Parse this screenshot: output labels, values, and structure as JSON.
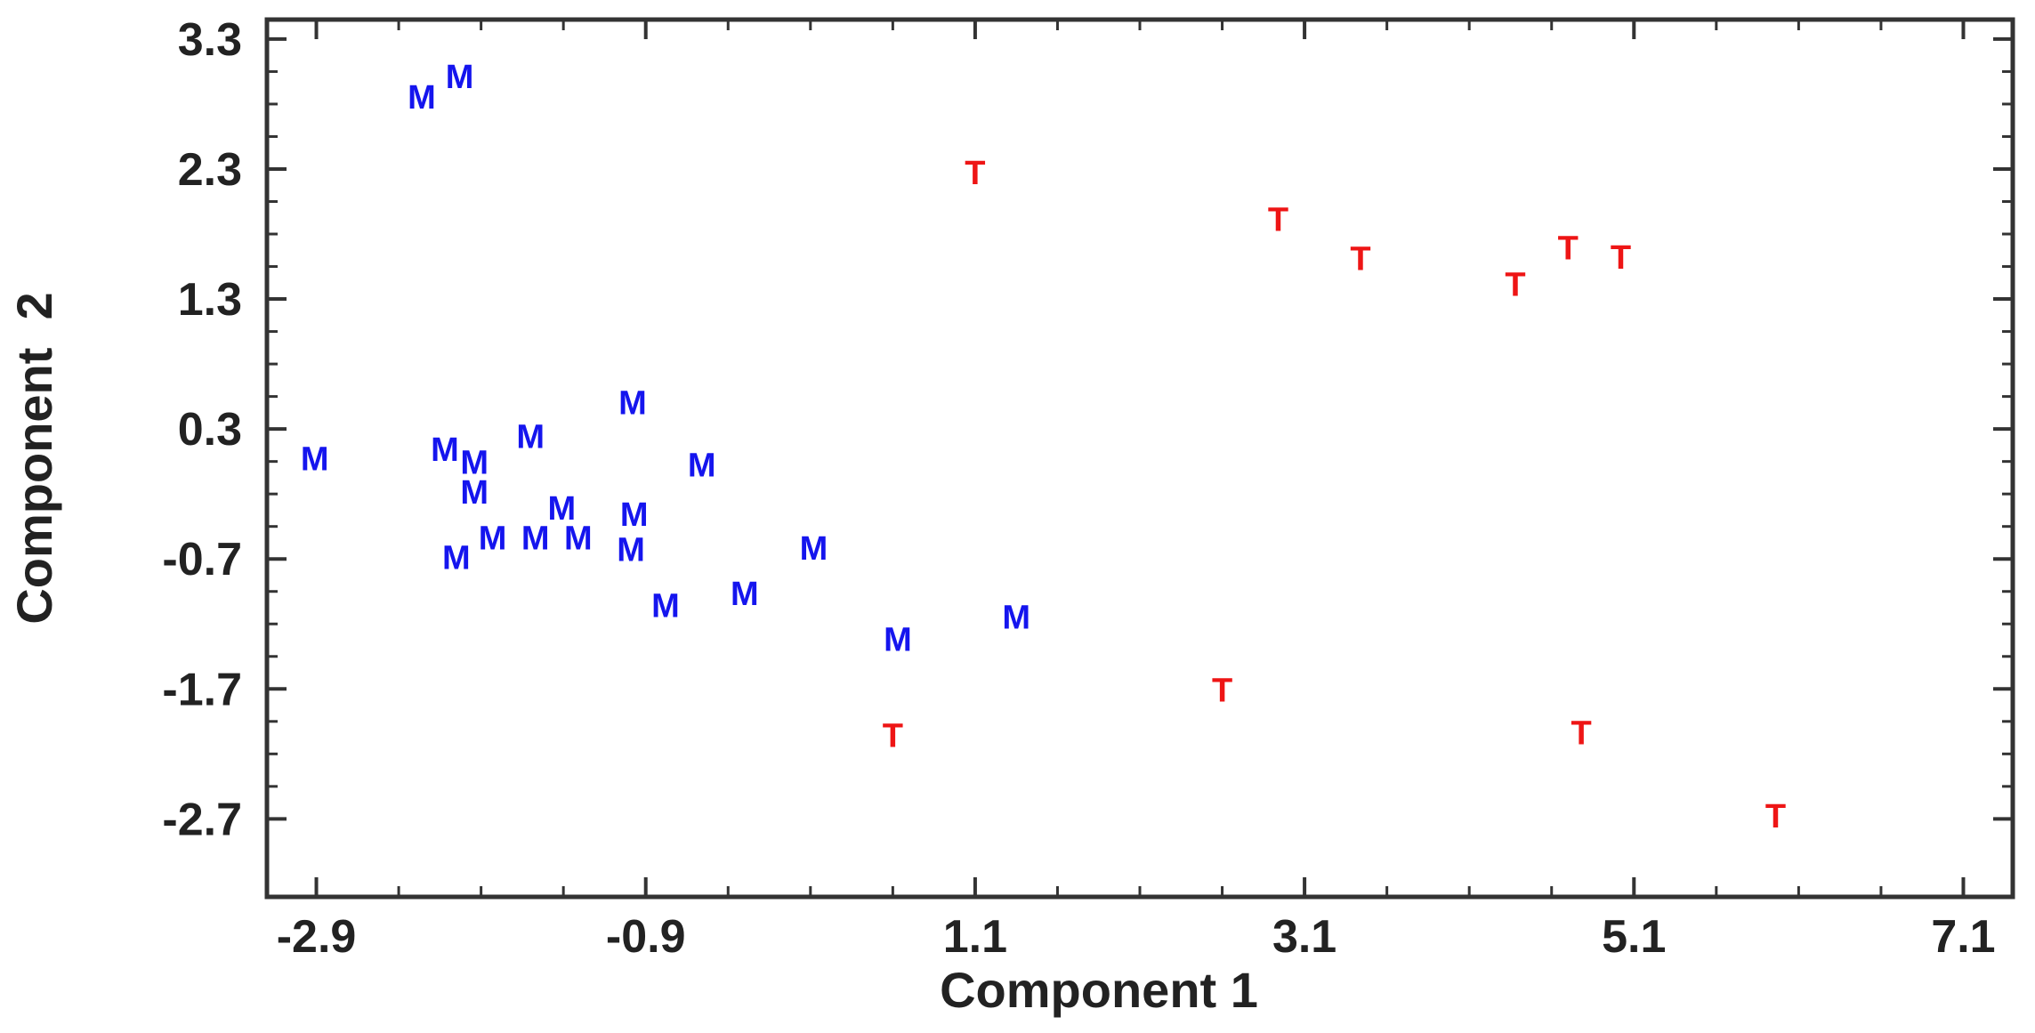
{
  "chart_data": {
    "type": "scatter",
    "title": "",
    "xlabel": "Component 1",
    "ylabel": "Component  2",
    "xlim": [
      -3.2,
      7.4
    ],
    "ylim": [
      -3.3,
      3.45
    ],
    "xticks": [
      -2.9,
      -0.9,
      1.1,
      3.1,
      5.1,
      7.1
    ],
    "xtick_labels": [
      "-2.9",
      "-0.9",
      "1.1",
      "3.1",
      "5.1",
      "7.1"
    ],
    "yticks": [
      3.3,
      2.3,
      1.3,
      0.3,
      -0.7,
      -1.7,
      -2.7
    ],
    "ytick_labels": [
      "3.3",
      "2.3",
      "1.3",
      "0.3",
      "-0.7",
      "-1.7",
      "-2.7"
    ],
    "grid": false,
    "series": [
      {
        "marker_label": "M",
        "color": "#1515ee",
        "points": [
          {
            "x": -2.26,
            "y": 2.86
          },
          {
            "x": -2.03,
            "y": 3.02
          },
          {
            "x": -2.91,
            "y": 0.08
          },
          {
            "x": -2.12,
            "y": 0.15
          },
          {
            "x": -1.94,
            "y": 0.05
          },
          {
            "x": -1.6,
            "y": 0.25
          },
          {
            "x": -1.41,
            "y": -0.3
          },
          {
            "x": -0.98,
            "y": 0.51
          },
          {
            "x": -0.97,
            "y": -0.35
          },
          {
            "x": -0.56,
            "y": 0.03
          },
          {
            "x": -1.94,
            "y": -0.18
          },
          {
            "x": -1.83,
            "y": -0.53
          },
          {
            "x": -1.57,
            "y": -0.53
          },
          {
            "x": -1.31,
            "y": -0.53
          },
          {
            "x": -0.99,
            "y": -0.62
          },
          {
            "x": -2.05,
            "y": -0.68
          },
          {
            "x": 0.12,
            "y": -0.61
          },
          {
            "x": -0.3,
            "y": -0.96
          },
          {
            "x": -0.78,
            "y": -1.05
          },
          {
            "x": 0.63,
            "y": -1.31
          },
          {
            "x": 1.35,
            "y": -1.14
          }
        ]
      },
      {
        "marker_label": "T",
        "color": "#ee1515",
        "points": [
          {
            "x": 1.1,
            "y": 2.28
          },
          {
            "x": 2.94,
            "y": 1.92
          },
          {
            "x": 3.44,
            "y": 1.62
          },
          {
            "x": 4.38,
            "y": 1.42
          },
          {
            "x": 4.7,
            "y": 1.7
          },
          {
            "x": 5.02,
            "y": 1.63
          },
          {
            "x": 2.6,
            "y": -1.7
          },
          {
            "x": 0.6,
            "y": -2.05
          },
          {
            "x": 4.78,
            "y": -2.03
          },
          {
            "x": 5.96,
            "y": -2.67
          }
        ]
      }
    ]
  }
}
